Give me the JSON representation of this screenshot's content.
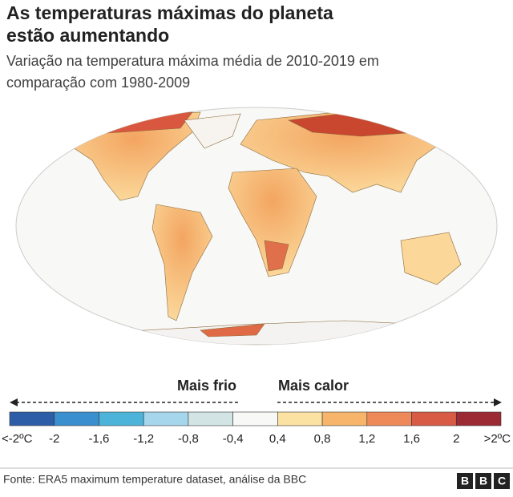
{
  "header": {
    "title_lines": [
      "As temperaturas máximas do planeta",
      "estão aumentando"
    ],
    "subtitle_lines": [
      "Variação na temperatura máxima média de 2010-2019 em",
      "comparação com 1980-2009"
    ]
  },
  "legend": {
    "cold_label": "Mais frio",
    "warm_label": "Mais calor",
    "colors": [
      "#2e5da8",
      "#3a8fcf",
      "#4bb4d8",
      "#a6d6ec",
      "#d2e4e4",
      "#f8f8f6",
      "#fbe1a2",
      "#f6b56b",
      "#ee8a5a",
      "#d85b45",
      "#9b2a35"
    ],
    "labels": [
      "<-2ºC",
      "-2",
      "-1,6",
      "-1,2",
      "-0,8",
      "-0,4",
      "0,4",
      "0,8",
      "1,2",
      "1,6",
      "2",
      ">2ºC"
    ]
  },
  "footer": {
    "source": "Fonte: ERA5 maximum temperature dataset, análise da BBC",
    "logo": [
      "B",
      "B",
      "C"
    ]
  }
}
